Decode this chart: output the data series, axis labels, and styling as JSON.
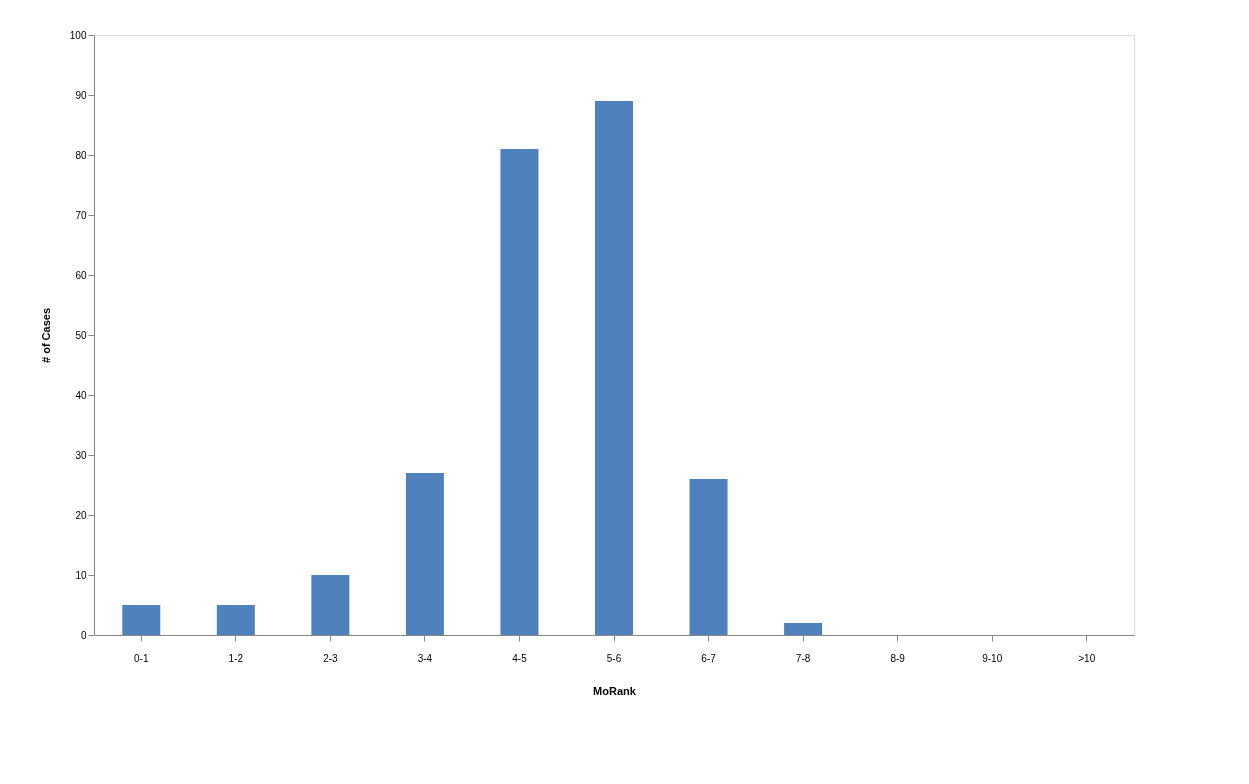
{
  "chart_data": {
    "type": "bar",
    "xlabel": "MoRank",
    "ylabel": "# of Cases",
    "categories": [
      "0-1",
      "1-2",
      "2-3",
      "3-4",
      "4-5",
      "5-6",
      "6-7",
      "7-8",
      "8-9",
      "9-10",
      ">10"
    ],
    "values": [
      5,
      5,
      10,
      27,
      81,
      89,
      26,
      2,
      0,
      0,
      0
    ],
    "color": "#4f81bd",
    "ylim": [
      0,
      100
    ],
    "yticks": [
      0,
      10,
      20,
      30,
      40,
      50,
      60,
      70,
      80,
      90,
      100
    ],
    "grid": false
  }
}
